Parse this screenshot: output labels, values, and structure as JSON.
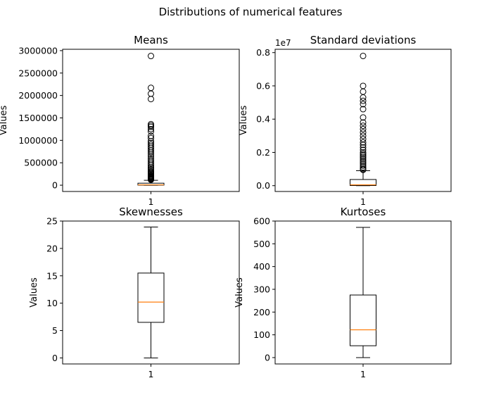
{
  "figure": {
    "title": "Distributions of numerical features"
  },
  "chart_data": [
    {
      "type": "box",
      "title": "Means",
      "ylabel": "Values",
      "offset_label": "",
      "categories": [
        "1"
      ],
      "yticks": [
        0,
        500000,
        1000000,
        1500000,
        2000000,
        2500000,
        3000000
      ],
      "ytick_labels": [
        "0",
        "500000",
        "1000000",
        "1500000",
        "2000000",
        "2500000",
        "3000000"
      ],
      "ylim": [
        -140000,
        3030000
      ],
      "box": {
        "whisker_low": 0,
        "q1": 2000,
        "median": 8000,
        "q3": 45000,
        "whisker_high": 110000
      },
      "outliers": [
        2880000,
        2170000,
        2040000,
        1920000,
        1360000,
        1330000,
        1300000,
        1250000,
        1200000,
        1100000,
        1050000,
        980000,
        940000,
        900000,
        860000,
        820000,
        780000,
        740000,
        700000,
        650000,
        600000,
        560000,
        520000,
        480000,
        440000,
        400000,
        370000,
        340000,
        310000,
        290000,
        270000,
        250000,
        230000,
        210000,
        195000,
        180000,
        165000,
        150000,
        140000,
        130000,
        120000
      ]
    },
    {
      "type": "box",
      "title": "Standard deviations",
      "ylabel": "Values",
      "offset_label": "1e7",
      "categories": [
        "1"
      ],
      "yticks": [
        0,
        0.2,
        0.4,
        0.6,
        0.8
      ],
      "ytick_labels": [
        "0.0",
        "0.2",
        "0.4",
        "0.6",
        "0.8"
      ],
      "ylim": [
        -0.035,
        0.82
      ],
      "box": {
        "whisker_low": 0,
        "q1": 0.001,
        "median": 0.005,
        "q3": 0.037,
        "whisker_high": 0.09
      },
      "outliers": [
        0.78,
        0.6,
        0.565,
        0.53,
        0.51,
        0.49,
        0.46,
        0.41,
        0.38,
        0.36,
        0.34,
        0.32,
        0.3,
        0.28,
        0.26,
        0.245,
        0.23,
        0.215,
        0.2,
        0.19,
        0.18,
        0.17,
        0.16,
        0.15,
        0.14,
        0.13,
        0.12,
        0.11,
        0.1,
        0.095
      ]
    },
    {
      "type": "box",
      "title": "Skewnesses",
      "ylabel": "Values",
      "offset_label": "",
      "categories": [
        "1"
      ],
      "yticks": [
        0,
        5,
        10,
        15,
        20,
        25
      ],
      "ytick_labels": [
        "0",
        "5",
        "10",
        "15",
        "20",
        "25"
      ],
      "ylim": [
        -1.1,
        25
      ],
      "box": {
        "whisker_low": 0,
        "q1": 6.5,
        "median": 10.2,
        "q3": 15.5,
        "whisker_high": 23.9
      },
      "outliers": []
    },
    {
      "type": "box",
      "title": "Kurtoses",
      "ylabel": "Values",
      "offset_label": "",
      "categories": [
        "1"
      ],
      "yticks": [
        0,
        100,
        200,
        300,
        400,
        500,
        600
      ],
      "ytick_labels": [
        "0",
        "100",
        "200",
        "300",
        "400",
        "500",
        "600"
      ],
      "ylim": [
        -28,
        600
      ],
      "box": {
        "whisker_low": 0,
        "q1": 52,
        "median": 122,
        "q3": 275,
        "whisker_high": 572
      },
      "outliers": []
    }
  ],
  "colors": {
    "box": "#000000",
    "median": "#ff7f0e",
    "outlier": "#000000"
  }
}
